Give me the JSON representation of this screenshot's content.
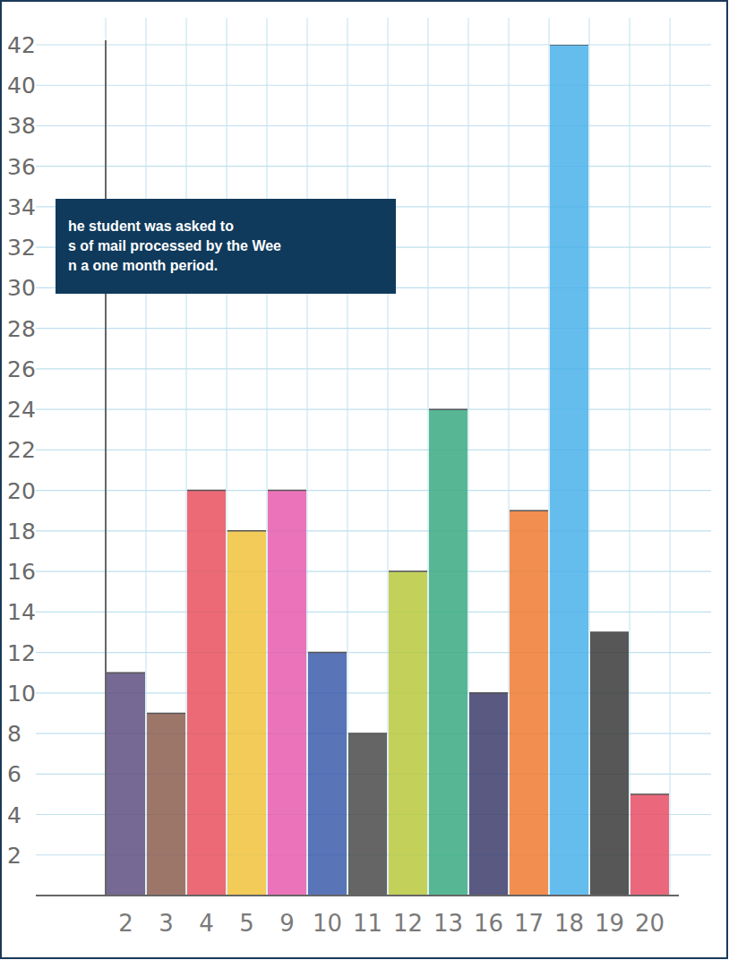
{
  "chart_data": {
    "type": "bar",
    "annotations": [
      "he student was asked to",
      "s of mail processed by the Wee",
      "n a one month period."
    ],
    "categories": [
      "2",
      "3",
      "4",
      "5",
      "9",
      "10",
      "11",
      "12",
      "13",
      "16",
      "17",
      "18",
      "19",
      "20"
    ],
    "values": [
      11,
      9,
      20,
      18,
      20,
      12,
      8,
      16,
      24,
      10,
      19,
      42,
      13,
      5
    ],
    "colors": [
      "#5e4f80",
      "#8c5e50",
      "#e8505e",
      "#f0c23c",
      "#e85aae",
      "#3c5caa",
      "#4a4a4a",
      "#b9c93e",
      "#3aaa82",
      "#3c3c6c",
      "#f07a30",
      "#4ab2ea",
      "#3a3a3a",
      "#e84c64"
    ],
    "ylim": [
      0,
      42
    ],
    "yticks": [
      2,
      4,
      6,
      8,
      10,
      12,
      14,
      16,
      18,
      20,
      22,
      24,
      26,
      28,
      30,
      32,
      34,
      36,
      38,
      40,
      42
    ],
    "grid": true
  }
}
